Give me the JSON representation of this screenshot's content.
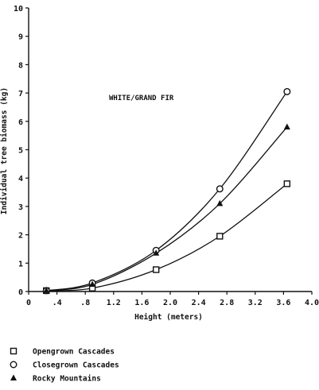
{
  "chart_data": {
    "type": "line",
    "annotation": "WHITE/GRAND FIR",
    "xlabel": "Height (meters)",
    "ylabel": "Individual tree biomass (kg)",
    "xlim": [
      0,
      4.0
    ],
    "ylim": [
      0,
      10
    ],
    "x_ticks": [
      0,
      0.4,
      0.8,
      1.2,
      1.6,
      2.0,
      2.4,
      2.8,
      3.2,
      3.6,
      4.0
    ],
    "x_tick_labels": [
      "0",
      ".4",
      ".8",
      "1.2",
      "1.6",
      "2.0",
      "2.4",
      "2.8",
      "3.2",
      "3.6",
      "4.0"
    ],
    "y_ticks": [
      0,
      1,
      2,
      3,
      4,
      5,
      6,
      7,
      8,
      9,
      10
    ],
    "y_tick_labels": [
      "0",
      "1",
      "2",
      "3",
      "4",
      "5",
      "6",
      "7",
      "8",
      "9",
      "10"
    ],
    "grid": false,
    "legend_position": "bottom-left",
    "series": [
      {
        "name": "Opengrown Cascades",
        "marker": "square",
        "x": [
          0.25,
          0.9,
          1.8,
          2.7,
          3.65
        ],
        "y": [
          0.03,
          0.12,
          0.77,
          1.95,
          3.8
        ]
      },
      {
        "name": "Closegrown Cascades",
        "marker": "circle",
        "x": [
          0.25,
          0.9,
          1.8,
          2.7,
          3.65
        ],
        "y": [
          0.03,
          0.3,
          1.45,
          3.62,
          7.05
        ]
      },
      {
        "name": "Rocky Mountains",
        "marker": "triangle",
        "x": [
          0.25,
          0.9,
          1.8,
          2.7,
          3.65
        ],
        "y": [
          0.03,
          0.25,
          1.35,
          3.1,
          5.8
        ]
      }
    ]
  }
}
